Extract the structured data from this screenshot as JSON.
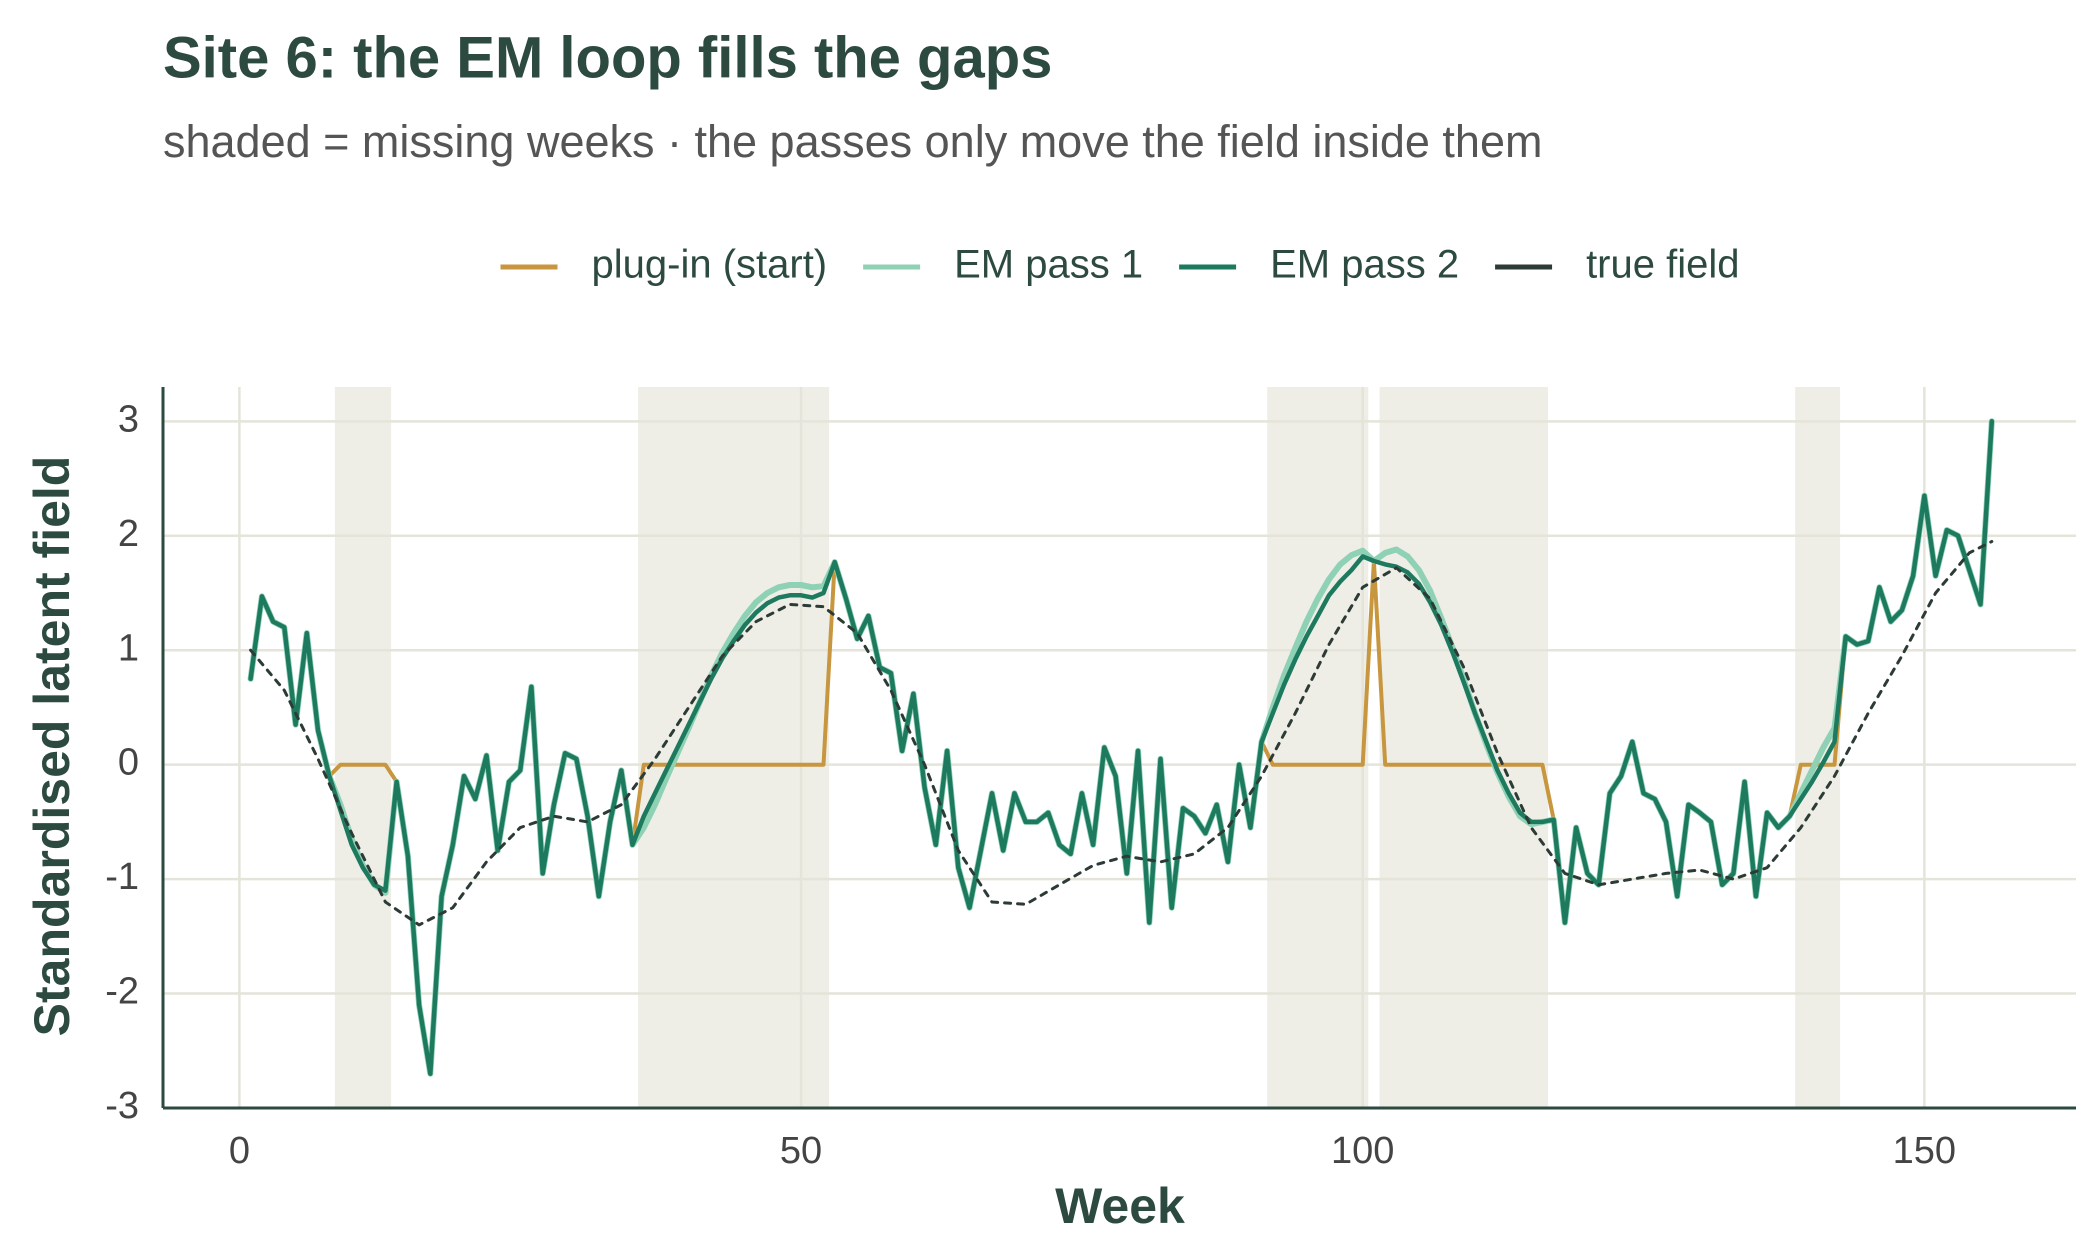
{
  "chart_data": {
    "type": "line",
    "title": "Site 6: the EM loop fills the gaps",
    "subtitle": "shaded = missing weeks · the passes only move the field inside them",
    "x_label": "Week",
    "y_label": "Standardised latent field",
    "xlim": [
      -6.8,
      163.5
    ],
    "ylim": [
      -3.0,
      3.3
    ],
    "xticks": [
      0,
      50,
      100,
      150
    ],
    "yticks": [
      -3,
      -2,
      -1,
      0,
      1,
      2,
      3
    ],
    "grid": true,
    "legend": "top",
    "missing_ranges": [
      [
        8.5,
        13.5
      ],
      [
        35.5,
        52.5
      ],
      [
        91.5,
        100.5
      ],
      [
        101.5,
        116.5
      ],
      [
        138.5,
        142.5
      ]
    ],
    "x": [
      1,
      2,
      3,
      4,
      5,
      6,
      7,
      8,
      9,
      10,
      11,
      12,
      13,
      14,
      15,
      16,
      17,
      18,
      19,
      20,
      21,
      22,
      23,
      24,
      25,
      26,
      27,
      28,
      29,
      30,
      31,
      32,
      33,
      34,
      35,
      36,
      37,
      38,
      39,
      40,
      41,
      42,
      43,
      44,
      45,
      46,
      47,
      48,
      49,
      50,
      51,
      52,
      53,
      54,
      55,
      56,
      57,
      58,
      59,
      60,
      61,
      62,
      63,
      64,
      65,
      66,
      67,
      68,
      69,
      70,
      71,
      72,
      73,
      74,
      75,
      76,
      77,
      78,
      79,
      80,
      81,
      82,
      83,
      84,
      85,
      86,
      87,
      88,
      89,
      90,
      91,
      92,
      93,
      94,
      95,
      96,
      97,
      98,
      99,
      100,
      101,
      102,
      103,
      104,
      105,
      106,
      107,
      108,
      109,
      110,
      111,
      112,
      113,
      114,
      115,
      116,
      117,
      118,
      119,
      120,
      121,
      122,
      123,
      124,
      125,
      126,
      127,
      128,
      129,
      130,
      131,
      132,
      133,
      134,
      135,
      136,
      137,
      138,
      139,
      140,
      141,
      142,
      143,
      144,
      145,
      146,
      147,
      148,
      149,
      150,
      151,
      152,
      153,
      154,
      155,
      156
    ],
    "series": [
      {
        "name": "plug-in (start)",
        "color": "#c8963e",
        "width": 4,
        "values": [
          0.75,
          1.47,
          1.25,
          1.2,
          0.35,
          1.15,
          0.3,
          -0.1,
          0,
          0,
          0,
          0,
          0,
          -0.15,
          -0.8,
          -2.1,
          -2.7,
          -1.15,
          -0.7,
          -0.1,
          -0.3,
          0.08,
          -0.75,
          -0.15,
          -0.05,
          0.68,
          -0.95,
          -0.35,
          0.1,
          0.05,
          -0.45,
          -1.15,
          -0.5,
          -0.05,
          -0.7,
          0,
          0,
          0,
          0,
          0,
          0,
          0,
          0,
          0,
          0,
          0,
          0,
          0,
          0,
          0,
          0,
          0,
          1.77,
          1.45,
          1.1,
          1.3,
          0.85,
          0.8,
          0.12,
          0.62,
          -0.2,
          -0.7,
          0.12,
          -0.9,
          -1.25,
          -0.75,
          -0.25,
          -0.75,
          -0.25,
          -0.5,
          -0.5,
          -0.42,
          -0.7,
          -0.78,
          -0.25,
          -0.7,
          0.15,
          -0.1,
          -0.95,
          0.12,
          -1.38,
          0.05,
          -1.25,
          -0.38,
          -0.45,
          -0.6,
          -0.35,
          -0.85,
          0,
          -0.55,
          0.2,
          0,
          0,
          0,
          0,
          0,
          0,
          0,
          0,
          0,
          1.78,
          0,
          0,
          0,
          0,
          0,
          0,
          0,
          0,
          0,
          0,
          0,
          0,
          0,
          0,
          0,
          -0.48,
          -1.38,
          -0.55,
          -0.95,
          -1.05,
          -0.25,
          -0.1,
          0.2,
          -0.25,
          -0.3,
          -0.5,
          -1.15,
          -0.35,
          -0.42,
          -0.5,
          -1.05,
          -0.95,
          -0.15,
          -1.15,
          -0.42,
          -0.55,
          -0.45,
          0,
          0,
          0,
          0,
          1.12,
          1.05,
          1.08,
          1.55,
          1.25,
          1.35,
          1.65,
          2.35,
          1.65,
          2.05,
          2.0,
          1.7,
          1.4,
          3.0
        ]
      },
      {
        "name": "EM pass 1",
        "color": "#8fd1b5",
        "width": 6,
        "values": [
          0.75,
          1.47,
          1.25,
          1.2,
          0.35,
          1.15,
          0.3,
          -0.1,
          -0.35,
          -0.65,
          -0.88,
          -1.05,
          -1.12,
          -0.15,
          -0.8,
          -2.1,
          -2.7,
          -1.15,
          -0.7,
          -0.1,
          -0.3,
          0.08,
          -0.75,
          -0.15,
          -0.05,
          0.68,
          -0.95,
          -0.35,
          0.1,
          0.05,
          -0.45,
          -1.15,
          -0.5,
          -0.05,
          -0.7,
          -0.55,
          -0.35,
          -0.12,
          0.1,
          0.32,
          0.55,
          0.78,
          0.98,
          1.15,
          1.3,
          1.42,
          1.5,
          1.55,
          1.57,
          1.57,
          1.55,
          1.56,
          1.77,
          1.45,
          1.1,
          1.3,
          0.85,
          0.8,
          0.12,
          0.62,
          -0.2,
          -0.7,
          0.12,
          -0.9,
          -1.25,
          -0.75,
          -0.25,
          -0.75,
          -0.25,
          -0.5,
          -0.5,
          -0.42,
          -0.7,
          -0.78,
          -0.25,
          -0.7,
          0.15,
          -0.1,
          -0.95,
          0.12,
          -1.38,
          0.05,
          -1.25,
          -0.38,
          -0.45,
          -0.6,
          -0.35,
          -0.85,
          0,
          -0.55,
          0.2,
          0.5,
          0.78,
          1.02,
          1.25,
          1.45,
          1.62,
          1.75,
          1.83,
          1.87,
          1.78,
          1.85,
          1.88,
          1.82,
          1.7,
          1.52,
          1.28,
          1.02,
          0.74,
          0.45,
          0.18,
          -0.07,
          -0.28,
          -0.45,
          -0.52,
          -0.5,
          -0.48,
          -1.38,
          -0.55,
          -0.95,
          -1.05,
          -0.25,
          -0.1,
          0.2,
          -0.25,
          -0.3,
          -0.5,
          -1.15,
          -0.35,
          -0.42,
          -0.5,
          -1.05,
          -0.95,
          -0.15,
          -1.15,
          -0.42,
          -0.55,
          -0.45,
          -0.25,
          -0.05,
          0.15,
          0.32,
          1.12,
          1.05,
          1.08,
          1.55,
          1.25,
          1.35,
          1.65,
          2.35,
          1.65,
          2.05,
          2.0,
          1.7,
          1.4,
          3.0
        ]
      },
      {
        "name": "EM pass 2",
        "color": "#1e7a5f",
        "width": 4.5,
        "values": [
          0.75,
          1.47,
          1.25,
          1.2,
          0.35,
          1.15,
          0.3,
          -0.1,
          -0.4,
          -0.7,
          -0.9,
          -1.05,
          -1.1,
          -0.15,
          -0.8,
          -2.1,
          -2.7,
          -1.15,
          -0.7,
          -0.1,
          -0.3,
          0.08,
          -0.75,
          -0.15,
          -0.05,
          0.68,
          -0.95,
          -0.35,
          0.1,
          0.05,
          -0.45,
          -1.15,
          -0.5,
          -0.05,
          -0.7,
          -0.45,
          -0.25,
          -0.05,
          0.15,
          0.35,
          0.55,
          0.75,
          0.93,
          1.08,
          1.22,
          1.33,
          1.41,
          1.46,
          1.48,
          1.48,
          1.46,
          1.5,
          1.77,
          1.45,
          1.1,
          1.3,
          0.85,
          0.8,
          0.12,
          0.62,
          -0.2,
          -0.7,
          0.12,
          -0.9,
          -1.25,
          -0.75,
          -0.25,
          -0.75,
          -0.25,
          -0.5,
          -0.5,
          -0.42,
          -0.7,
          -0.78,
          -0.25,
          -0.7,
          0.15,
          -0.1,
          -0.95,
          0.12,
          -1.38,
          0.05,
          -1.25,
          -0.38,
          -0.45,
          -0.6,
          -0.35,
          -0.85,
          0,
          -0.55,
          0.2,
          0.45,
          0.7,
          0.92,
          1.12,
          1.3,
          1.48,
          1.6,
          1.7,
          1.82,
          1.78,
          1.75,
          1.73,
          1.68,
          1.58,
          1.42,
          1.22,
          0.98,
          0.72,
          0.45,
          0.2,
          -0.05,
          -0.25,
          -0.42,
          -0.5,
          -0.5,
          -0.48,
          -1.38,
          -0.55,
          -0.95,
          -1.05,
          -0.25,
          -0.1,
          0.2,
          -0.25,
          -0.3,
          -0.5,
          -1.15,
          -0.35,
          -0.42,
          -0.5,
          -1.05,
          -0.95,
          -0.15,
          -1.15,
          -0.42,
          -0.55,
          -0.45,
          -0.3,
          -0.15,
          0.02,
          0.2,
          1.12,
          1.05,
          1.08,
          1.55,
          1.25,
          1.35,
          1.65,
          2.35,
          1.65,
          2.05,
          2.0,
          1.7,
          1.4,
          3.0
        ]
      },
      {
        "name": "true field",
        "color": "#2d3b36",
        "width": 3,
        "dashed": true,
        "x": [
          1,
          4,
          7,
          10,
          13,
          16,
          19,
          22,
          25,
          28,
          31,
          34,
          37,
          40,
          43,
          46,
          49,
          52,
          55,
          58,
          61,
          64,
          67,
          70,
          73,
          76,
          79,
          82,
          85,
          88,
          91,
          94,
          97,
          100,
          103,
          106,
          109,
          112,
          115,
          118,
          121,
          124,
          127,
          130,
          133,
          136,
          139,
          142,
          145,
          148,
          151,
          154,
          156
        ],
        "values": [
          1.0,
          0.65,
          0.05,
          -0.6,
          -1.2,
          -1.4,
          -1.25,
          -0.85,
          -0.55,
          -0.45,
          -0.5,
          -0.35,
          0.05,
          0.5,
          0.95,
          1.25,
          1.4,
          1.38,
          1.15,
          0.65,
          0.0,
          -0.75,
          -1.2,
          -1.22,
          -1.05,
          -0.88,
          -0.8,
          -0.85,
          -0.78,
          -0.55,
          -0.1,
          0.45,
          1.05,
          1.55,
          1.72,
          1.45,
          0.85,
          0.1,
          -0.55,
          -0.95,
          -1.05,
          -1.0,
          -0.95,
          -0.92,
          -1.0,
          -0.9,
          -0.55,
          -0.1,
          0.45,
          0.95,
          1.5,
          1.85,
          1.95
        ]
      }
    ]
  }
}
